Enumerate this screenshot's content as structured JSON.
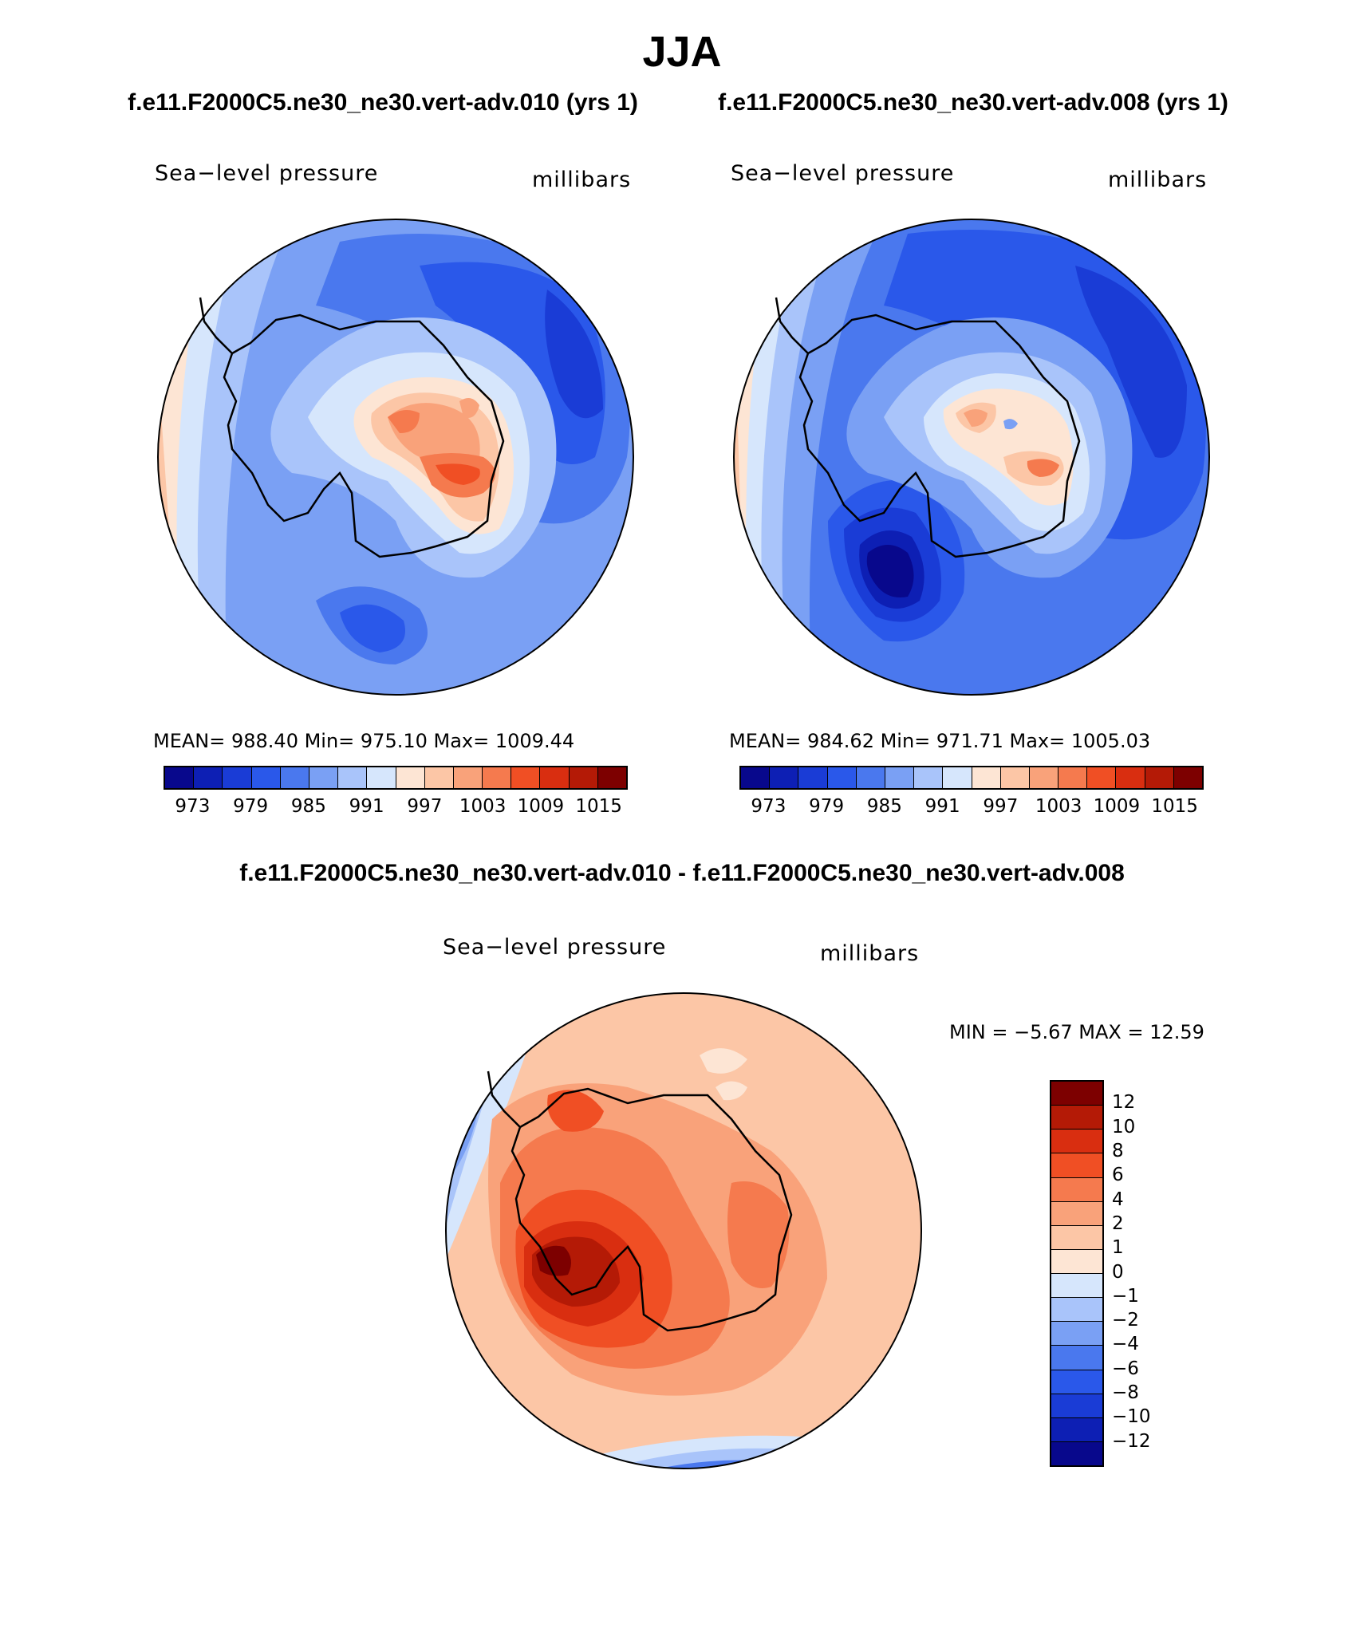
{
  "figure": {
    "season": "JJA",
    "case_a_title": "f.e11.F2000C5.ne30_ne30.vert-adv.010 (yrs 1)",
    "case_b_title": "f.e11.F2000C5.ne30_ne30.vert-adv.008 (yrs 1)",
    "diff_title": "f.e11.F2000C5.ne30_ne30.vert-adv.010 - f.e11.F2000C5.ne30_ne30.vert-adv.008"
  },
  "panel_a": {
    "variable": "Sea−level pressure",
    "units": "millibars",
    "stats": "MEAN=  988.40   Min=  975.10    Max=  1009.44"
  },
  "panel_b": {
    "variable": "Sea−level pressure",
    "units": "millibars",
    "stats": "MEAN=  984.62   Min=  971.71    Max=  1005.03"
  },
  "panel_diff": {
    "variable": "Sea−level pressure",
    "units": "millibars",
    "stats": "MIN =   −5.67  MAX =   12.59"
  },
  "chart_data": [
    {
      "type": "heatmap",
      "title": "Sea-level pressure (vert-adv.010, JJA)",
      "units": "millibars",
      "projection": "south polar stereographic",
      "stats": {
        "mean": 988.4,
        "min": 975.1,
        "max": 1009.44
      },
      "contour_levels": [
        973,
        976,
        979,
        982,
        985,
        988,
        991,
        994,
        997,
        1000,
        1003,
        1006,
        1009,
        1012,
        1015
      ],
      "colorbar_tick_labels": [
        "973",
        "979",
        "985",
        "991",
        "997",
        "1003",
        "1009",
        "1015"
      ]
    },
    {
      "type": "heatmap",
      "title": "Sea-level pressure (vert-adv.008, JJA)",
      "units": "millibars",
      "projection": "south polar stereographic",
      "stats": {
        "mean": 984.62,
        "min": 971.71,
        "max": 1005.03
      },
      "contour_levels": [
        973,
        976,
        979,
        982,
        985,
        988,
        991,
        994,
        997,
        1000,
        1003,
        1006,
        1009,
        1012,
        1015
      ],
      "colorbar_tick_labels": [
        "973",
        "979",
        "985",
        "991",
        "997",
        "1003",
        "1009",
        "1015"
      ]
    },
    {
      "type": "heatmap",
      "title": "Sea-level pressure difference (010 - 008, JJA)",
      "units": "millibars",
      "projection": "south polar stereographic",
      "stats": {
        "min": -5.67,
        "max": 12.59
      },
      "contour_levels": [
        -12,
        -10,
        -8,
        -6,
        -4,
        -2,
        -1,
        0,
        1,
        2,
        4,
        6,
        8,
        10,
        12
      ],
      "colorbar_tick_labels": [
        "12",
        "10",
        "8",
        "6",
        "4",
        "2",
        "1",
        "0",
        "−1",
        "−2",
        "−4",
        "−6",
        "−8",
        "−10",
        "−12"
      ]
    }
  ],
  "colors": {
    "abs_scale": [
      "#08088c",
      "#0d1fb4",
      "#1a3cd6",
      "#2a58ea",
      "#4a78ee",
      "#7aa0f4",
      "#a9c4fa",
      "#d6e6fc",
      "#fde5d4",
      "#fcc6a6",
      "#f9a27a",
      "#f57a4e",
      "#f04f24",
      "#d92e10",
      "#b41a06",
      "#7d0000"
    ],
    "diff_scale_top_to_bottom": [
      "#7d0000",
      "#b41a06",
      "#d92e10",
      "#f04f24",
      "#f57a4e",
      "#f9a27a",
      "#fcc6a6",
      "#fde5d4",
      "#d6e6fc",
      "#a9c4fa",
      "#7aa0f4",
      "#4a78ee",
      "#2a58ea",
      "#1a3cd6",
      "#0d1fb4",
      "#08088c"
    ]
  }
}
